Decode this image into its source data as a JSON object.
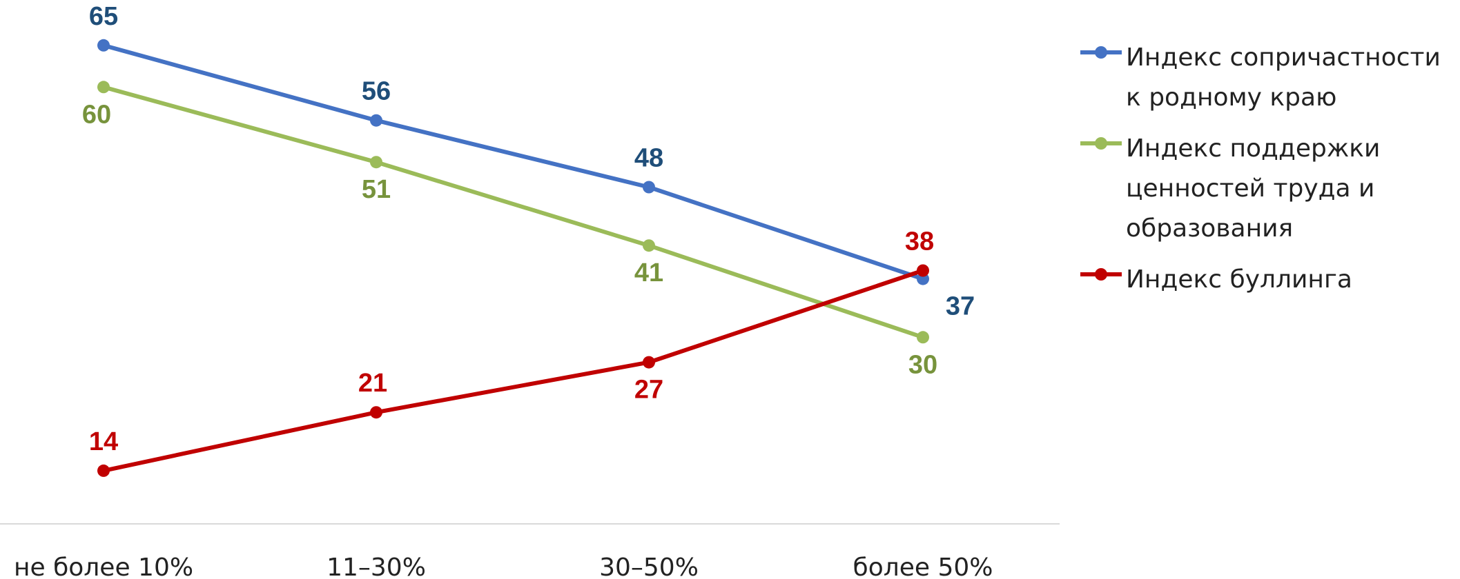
{
  "chart_data": {
    "type": "line",
    "categories": [
      "не более 10%",
      "11–30%",
      "30–50%",
      "более 50%"
    ],
    "series": [
      {
        "name": "Индекс сопричастности к родному краю",
        "values": [
          65,
          56,
          48,
          37
        ],
        "color": "#4472C4",
        "label_color": "#1F4E79"
      },
      {
        "name": "Индекс поддержки ценностей труда и образования",
        "values": [
          60,
          51,
          41,
          30
        ],
        "color": "#9BBB59",
        "label_color": "#77933C"
      },
      {
        "name": "Индекс буллинга",
        "values": [
          14,
          21,
          27,
          38
        ],
        "color": "#C00000",
        "label_color": "#C00000"
      }
    ],
    "title": "",
    "xlabel": "",
    "ylabel": "",
    "ylim": [
      0,
      72
    ],
    "grid": false,
    "legend_position": "right"
  }
}
